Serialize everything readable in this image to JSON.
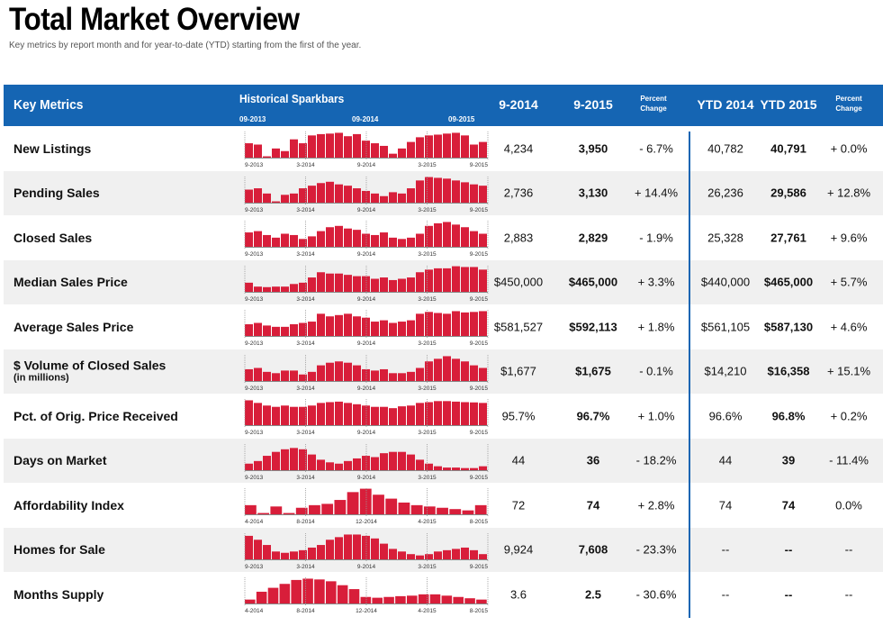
{
  "title": "Total Market Overview",
  "subtitle": "Key metrics by report month and for year-to-date (YTD) starting from the first of the year.",
  "header": {
    "key_metrics": "Key Metrics",
    "sparkbars": "Historical Sparkbars",
    "spark_labels": [
      "09-2013",
      "09-2014",
      "09-2015"
    ],
    "period1": "9-2014",
    "period2": "9-2015",
    "percent_change": "Percent Change",
    "ytd1": "YTD 2014",
    "ytd2": "YTD 2015",
    "ytd_percent_change": "Percent Change"
  },
  "colors": {
    "header_bg": "#1565b3",
    "bar": "#d81e3a",
    "alt_row": "#f0f0f0"
  },
  "rows": [
    {
      "label": "New Listings",
      "sublabel": "",
      "p1": "4,234",
      "p2": "3,950",
      "pct": "- 6.7%",
      "ytd1": "40,782",
      "ytd2": "40,791",
      "ytd_pct": "+ 0.0%",
      "axis": [
        "9-2013",
        "3-2014",
        "9-2014",
        "3-2015",
        "9-2015"
      ],
      "bars": [
        0.55,
        0.5,
        0.05,
        0.35,
        0.25,
        0.7,
        0.55,
        0.85,
        0.9,
        0.92,
        0.95,
        0.82,
        0.9,
        0.65,
        0.55,
        0.45,
        0.15,
        0.35,
        0.6,
        0.78,
        0.85,
        0.88,
        0.92,
        0.95,
        0.85,
        0.5,
        0.6
      ]
    },
    {
      "label": "Pending Sales",
      "sublabel": "",
      "p1": "2,736",
      "p2": "3,130",
      "pct": "+ 14.4%",
      "ytd1": "26,236",
      "ytd2": "29,586",
      "ytd_pct": "+ 12.8%",
      "axis": [
        "9-2013",
        "3-2014",
        "9-2014",
        "3-2015",
        "9-2015"
      ],
      "bars": [
        0.5,
        0.55,
        0.35,
        0.05,
        0.3,
        0.35,
        0.55,
        0.65,
        0.75,
        0.8,
        0.7,
        0.65,
        0.55,
        0.45,
        0.35,
        0.25,
        0.4,
        0.35,
        0.55,
        0.85,
        0.98,
        0.95,
        0.92,
        0.85,
        0.78,
        0.7,
        0.65
      ]
    },
    {
      "label": "Closed Sales",
      "sublabel": "",
      "p1": "2,883",
      "p2": "2,829",
      "pct": "- 1.9%",
      "ytd1": "25,328",
      "ytd2": "27,761",
      "ytd_pct": "+ 9.6%",
      "axis": [
        "9-2013",
        "3-2014",
        "9-2014",
        "3-2015",
        "9-2015"
      ],
      "bars": [
        0.55,
        0.6,
        0.45,
        0.35,
        0.5,
        0.45,
        0.3,
        0.4,
        0.6,
        0.75,
        0.8,
        0.7,
        0.65,
        0.5,
        0.45,
        0.55,
        0.35,
        0.3,
        0.35,
        0.5,
        0.8,
        0.9,
        0.95,
        0.85,
        0.75,
        0.6,
        0.5
      ]
    },
    {
      "label": "Median Sales Price",
      "sublabel": "",
      "p1": "$450,000",
      "p2": "$465,000",
      "pct": "+ 3.3%",
      "ytd1": "$440,000",
      "ytd2": "$465,000",
      "ytd_pct": "+ 5.7%",
      "axis": [
        "9-2013",
        "3-2014",
        "9-2014",
        "3-2015",
        "9-2015"
      ],
      "bars": [
        0.35,
        0.2,
        0.18,
        0.2,
        0.2,
        0.3,
        0.35,
        0.55,
        0.75,
        0.7,
        0.7,
        0.65,
        0.6,
        0.6,
        0.5,
        0.55,
        0.45,
        0.5,
        0.55,
        0.75,
        0.85,
        0.9,
        0.9,
        0.98,
        0.95,
        0.95,
        0.85
      ]
    },
    {
      "label": "Average Sales Price",
      "sublabel": "",
      "p1": "$581,527",
      "p2": "$592,113",
      "pct": "+ 1.8%",
      "ytd1": "$561,105",
      "ytd2": "$587,130",
      "ytd_pct": "+ 4.6%",
      "axis": [
        "9-2013",
        "3-2014",
        "9-2014",
        "3-2015",
        "9-2015"
      ],
      "bars": [
        0.45,
        0.5,
        0.4,
        0.35,
        0.35,
        0.45,
        0.5,
        0.55,
        0.85,
        0.75,
        0.8,
        0.85,
        0.75,
        0.7,
        0.55,
        0.6,
        0.5,
        0.55,
        0.6,
        0.85,
        0.92,
        0.88,
        0.85,
        0.95,
        0.9,
        0.92,
        0.95
      ]
    },
    {
      "label": "$ Volume of Closed Sales",
      "sublabel": "(in millions)",
      "p1": "$1,677",
      "p2": "$1,675",
      "pct": "- 0.1%",
      "ytd1": "$14,210",
      "ytd2": "$16,358",
      "ytd_pct": "+ 15.1%",
      "axis": [
        "9-2013",
        "3-2014",
        "9-2014",
        "3-2015",
        "9-2015"
      ],
      "bars": [
        0.45,
        0.5,
        0.35,
        0.3,
        0.4,
        0.4,
        0.25,
        0.35,
        0.6,
        0.7,
        0.75,
        0.7,
        0.6,
        0.45,
        0.4,
        0.45,
        0.3,
        0.3,
        0.35,
        0.5,
        0.75,
        0.85,
        0.95,
        0.85,
        0.75,
        0.6,
        0.5
      ]
    },
    {
      "label": "Pct. of Orig. Price Received",
      "sublabel": "",
      "p1": "95.7%",
      "p2": "96.7%",
      "pct": "+ 1.0%",
      "ytd1": "96.6%",
      "ytd2": "96.8%",
      "ytd_pct": "+ 0.2%",
      "axis": [
        "9-2013",
        "3-2014",
        "9-2014",
        "3-2015",
        "9-2015"
      ],
      "bars": [
        0.95,
        0.85,
        0.75,
        0.7,
        0.75,
        0.7,
        0.7,
        0.75,
        0.85,
        0.88,
        0.9,
        0.85,
        0.8,
        0.75,
        0.7,
        0.7,
        0.65,
        0.72,
        0.75,
        0.85,
        0.88,
        0.92,
        0.92,
        0.9,
        0.88,
        0.87,
        0.85
      ]
    },
    {
      "label": "Days on Market",
      "sublabel": "",
      "p1": "44",
      "p2": "36",
      "pct": "- 18.2%",
      "ytd1": "44",
      "ytd2": "39",
      "ytd_pct": "- 11.4%",
      "axis": [
        "9-2013",
        "3-2014",
        "9-2014",
        "3-2015",
        "9-2015"
      ],
      "bars": [
        0.25,
        0.35,
        0.55,
        0.7,
        0.8,
        0.85,
        0.8,
        0.6,
        0.4,
        0.3,
        0.25,
        0.35,
        0.45,
        0.55,
        0.5,
        0.65,
        0.7,
        0.7,
        0.6,
        0.4,
        0.25,
        0.15,
        0.1,
        0.1,
        0.08,
        0.08,
        0.15
      ]
    },
    {
      "label": "Affordability Index",
      "sublabel": "",
      "p1": "72",
      "p2": "74",
      "pct": "+ 2.8%",
      "ytd1": "74",
      "ytd2": "74",
      "ytd_pct": "0.0%",
      "axis": [
        "4-2014",
        "8-2014",
        "12-2014",
        "4-2015",
        "8-2015"
      ],
      "bars": [
        0.35,
        0.05,
        0.3,
        0.05,
        0.25,
        0.35,
        0.4,
        0.55,
        0.85,
        0.98,
        0.75,
        0.6,
        0.45,
        0.35,
        0.3,
        0.25,
        0.2,
        0.15,
        0.35
      ]
    },
    {
      "label": "Homes for Sale",
      "sublabel": "",
      "p1": "9,924",
      "p2": "7,608",
      "pct": "- 23.3%",
      "ytd1": "--",
      "ytd2": "--",
      "ytd_pct": "--",
      "axis": [
        "9-2013",
        "3-2014",
        "9-2014",
        "3-2015",
        "9-2015"
      ],
      "bars": [
        0.9,
        0.75,
        0.55,
        0.3,
        0.25,
        0.3,
        0.35,
        0.45,
        0.55,
        0.75,
        0.85,
        0.95,
        0.95,
        0.9,
        0.8,
        0.6,
        0.4,
        0.3,
        0.2,
        0.15,
        0.2,
        0.3,
        0.35,
        0.4,
        0.45,
        0.35,
        0.2
      ]
    },
    {
      "label": "Months Supply",
      "sublabel": "",
      "p1": "3.6",
      "p2": "2.5",
      "pct": "- 30.6%",
      "ytd1": "--",
      "ytd2": "--",
      "ytd_pct": "--",
      "axis": [
        "4-2014",
        "8-2014",
        "12-2014",
        "4-2015",
        "8-2015"
      ],
      "bars": [
        0.15,
        0.45,
        0.6,
        0.75,
        0.9,
        0.95,
        0.92,
        0.85,
        0.7,
        0.55,
        0.25,
        0.22,
        0.25,
        0.28,
        0.3,
        0.35,
        0.35,
        0.3,
        0.25,
        0.2,
        0.15
      ]
    }
  ]
}
